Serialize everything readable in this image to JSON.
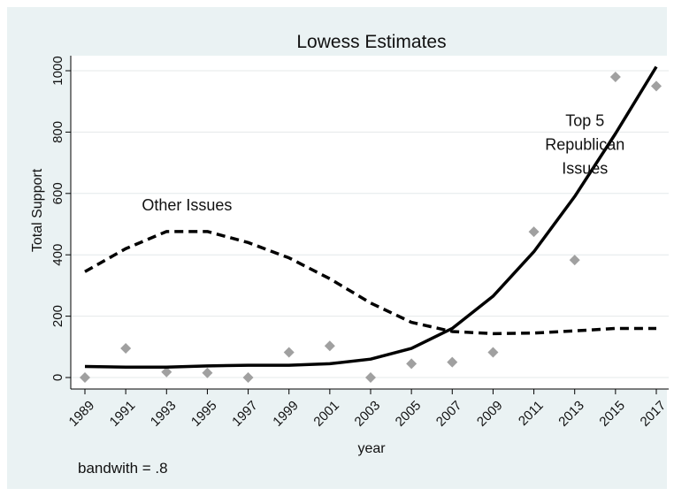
{
  "chart_data": {
    "type": "line",
    "title": "Lowess Estimates",
    "xlabel": "year",
    "ylabel": "Total Support",
    "xlim": [
      1989,
      2017
    ],
    "ylim": [
      0,
      1000
    ],
    "x": [
      1989,
      1991,
      1993,
      1995,
      1997,
      1999,
      2001,
      2003,
      2005,
      2007,
      2009,
      2011,
      2013,
      2015,
      2017
    ],
    "xticks": [
      "1989",
      "1991",
      "1993",
      "1995",
      "1997",
      "1999",
      "2001",
      "2003",
      "2005",
      "2007",
      "2009",
      "2011",
      "2013",
      "2015",
      "2017"
    ],
    "yticks": [
      "0",
      "200",
      "400",
      "600",
      "800",
      "1000"
    ],
    "ytick_values": [
      0,
      200,
      400,
      600,
      800,
      1000
    ],
    "grid": true,
    "series": [
      {
        "type": "scatter",
        "marker": "diamond",
        "color": "#a0a0a0",
        "values": [
          0,
          95,
          18,
          15,
          0,
          82,
          103,
          0,
          45,
          50,
          82,
          475,
          383,
          980,
          950
        ]
      },
      {
        "type": "line",
        "style": "solid",
        "color": "#000000",
        "values": [
          36,
          34,
          34,
          38,
          40,
          40,
          45,
          60,
          95,
          160,
          265,
          410,
          590,
          795,
          1013
        ]
      },
      {
        "type": "line",
        "style": "dashed",
        "color": "#000000",
        "values": [
          345,
          420,
          476,
          476,
          440,
          390,
          322,
          243,
          180,
          150,
          143,
          145,
          152,
          160,
          160
        ]
      }
    ],
    "annotations": [
      {
        "text": "Other Issues",
        "x": 1994,
        "y": 545
      },
      {
        "lines": [
          "Top 5",
          "Republican",
          "Issues"
        ],
        "x": 2013.5,
        "y": 820
      }
    ]
  },
  "note": "bandwith = .8"
}
